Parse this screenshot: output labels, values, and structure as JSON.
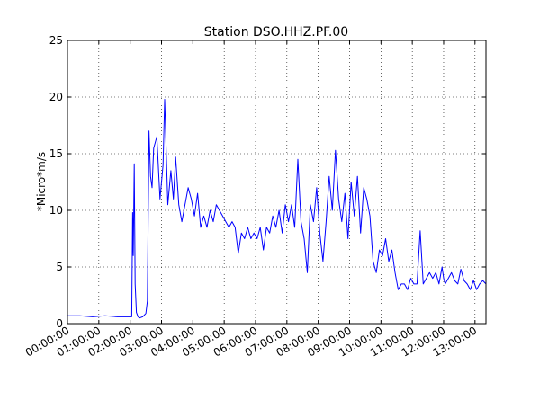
{
  "chart_data": {
    "type": "line",
    "title": "Station DSO.HHZ.PF.00",
    "xlabel": "",
    "ylabel": "*Micro*m/s",
    "x_unit": "hours",
    "xlim": [
      0,
      13.35
    ],
    "ylim": [
      0,
      25
    ],
    "grid": true,
    "line_color": "#0000ff",
    "y_ticks": [
      0,
      5,
      10,
      15,
      20,
      25
    ],
    "x_ticks": [
      {
        "x": 0,
        "label": "00:00:00"
      },
      {
        "x": 1,
        "label": "01:00:00"
      },
      {
        "x": 2,
        "label": "02:00:00"
      },
      {
        "x": 3,
        "label": "03:00:00"
      },
      {
        "x": 4,
        "label": "04:00:00"
      },
      {
        "x": 5,
        "label": "05:00:00"
      },
      {
        "x": 6,
        "label": "06:00:00"
      },
      {
        "x": 7,
        "label": "07:00:00"
      },
      {
        "x": 8,
        "label": "08:00:00"
      },
      {
        "x": 9,
        "label": "09:00:00"
      },
      {
        "x": 10,
        "label": "10:00:00"
      },
      {
        "x": 11,
        "label": "11:00:00"
      },
      {
        "x": 12,
        "label": "12:00:00"
      },
      {
        "x": 13,
        "label": "13:00:00"
      }
    ],
    "x": [
      0,
      0.4,
      0.8,
      1.2,
      1.6,
      2.0,
      2.05,
      2.08,
      2.1,
      2.13,
      2.16,
      2.2,
      2.25,
      2.3,
      2.4,
      2.5,
      2.55,
      2.6,
      2.65,
      2.7,
      2.75,
      2.85,
      2.95,
      3.05,
      3.1,
      3.2,
      3.3,
      3.38,
      3.45,
      3.55,
      3.65,
      3.75,
      3.85,
      3.95,
      4.05,
      4.15,
      4.25,
      4.35,
      4.45,
      4.55,
      4.65,
      4.75,
      4.85,
      4.95,
      5.05,
      5.15,
      5.25,
      5.35,
      5.45,
      5.55,
      5.65,
      5.75,
      5.85,
      5.95,
      6.05,
      6.15,
      6.25,
      6.35,
      6.45,
      6.55,
      6.65,
      6.75,
      6.85,
      6.95,
      7.05,
      7.15,
      7.25,
      7.35,
      7.45,
      7.55,
      7.65,
      7.75,
      7.85,
      7.95,
      8.05,
      8.15,
      8.25,
      8.35,
      8.45,
      8.55,
      8.65,
      8.75,
      8.85,
      8.95,
      9.05,
      9.15,
      9.25,
      9.35,
      9.45,
      9.55,
      9.65,
      9.75,
      9.85,
      9.95,
      10.05,
      10.15,
      10.25,
      10.35,
      10.45,
      10.55,
      10.65,
      10.75,
      10.85,
      10.95,
      11.05,
      11.15,
      11.25,
      11.35,
      11.45,
      11.55,
      11.65,
      11.75,
      11.85,
      11.95,
      12.0,
      12.05,
      12.15,
      12.25,
      12.35,
      12.45,
      12.55,
      12.65,
      12.75,
      12.85,
      12.95,
      13.05,
      13.15,
      13.25,
      13.35
    ],
    "values": [
      0.7,
      0.7,
      0.6,
      0.7,
      0.6,
      0.6,
      0.6,
      9.8,
      6.0,
      14.1,
      3.5,
      1.0,
      0.6,
      0.5,
      0.6,
      0.9,
      2.0,
      17.0,
      13.0,
      12.0,
      15.5,
      16.5,
      11.0,
      14.0,
      19.8,
      10.5,
      13.5,
      11.0,
      14.7,
      10.5,
      9.0,
      10.5,
      12.0,
      11.0,
      9.5,
      11.5,
      8.5,
      9.5,
      8.5,
      10.0,
      9.0,
      10.5,
      10.0,
      9.5,
      9.0,
      8.5,
      9.0,
      8.5,
      6.2,
      8.0,
      7.5,
      8.5,
      7.5,
      8.0,
      7.5,
      8.5,
      6.5,
      8.5,
      8.0,
      9.5,
      8.5,
      10.0,
      8.0,
      10.5,
      9.0,
      10.5,
      8.5,
      14.5,
      9.0,
      7.5,
      4.5,
      10.5,
      9.0,
      12.0,
      8.0,
      5.5,
      9.0,
      13.0,
      10.0,
      15.3,
      11.0,
      9.0,
      11.5,
      7.5,
      12.5,
      9.5,
      13.0,
      8.0,
      12.0,
      11.0,
      9.5,
      5.5,
      4.5,
      6.5,
      6.0,
      7.5,
      5.5,
      6.5,
      4.5,
      3.0,
      3.5,
      3.5,
      3.0,
      4.0,
      3.5,
      3.5,
      8.2,
      3.5,
      4.0,
      4.5,
      4.0,
      4.5,
      3.5,
      5.0,
      4.0,
      3.5,
      4.0,
      4.5,
      3.8,
      3.5,
      4.8,
      3.8,
      3.5,
      3.0,
      3.8,
      3.0,
      3.5,
      3.8,
      3.5
    ]
  }
}
